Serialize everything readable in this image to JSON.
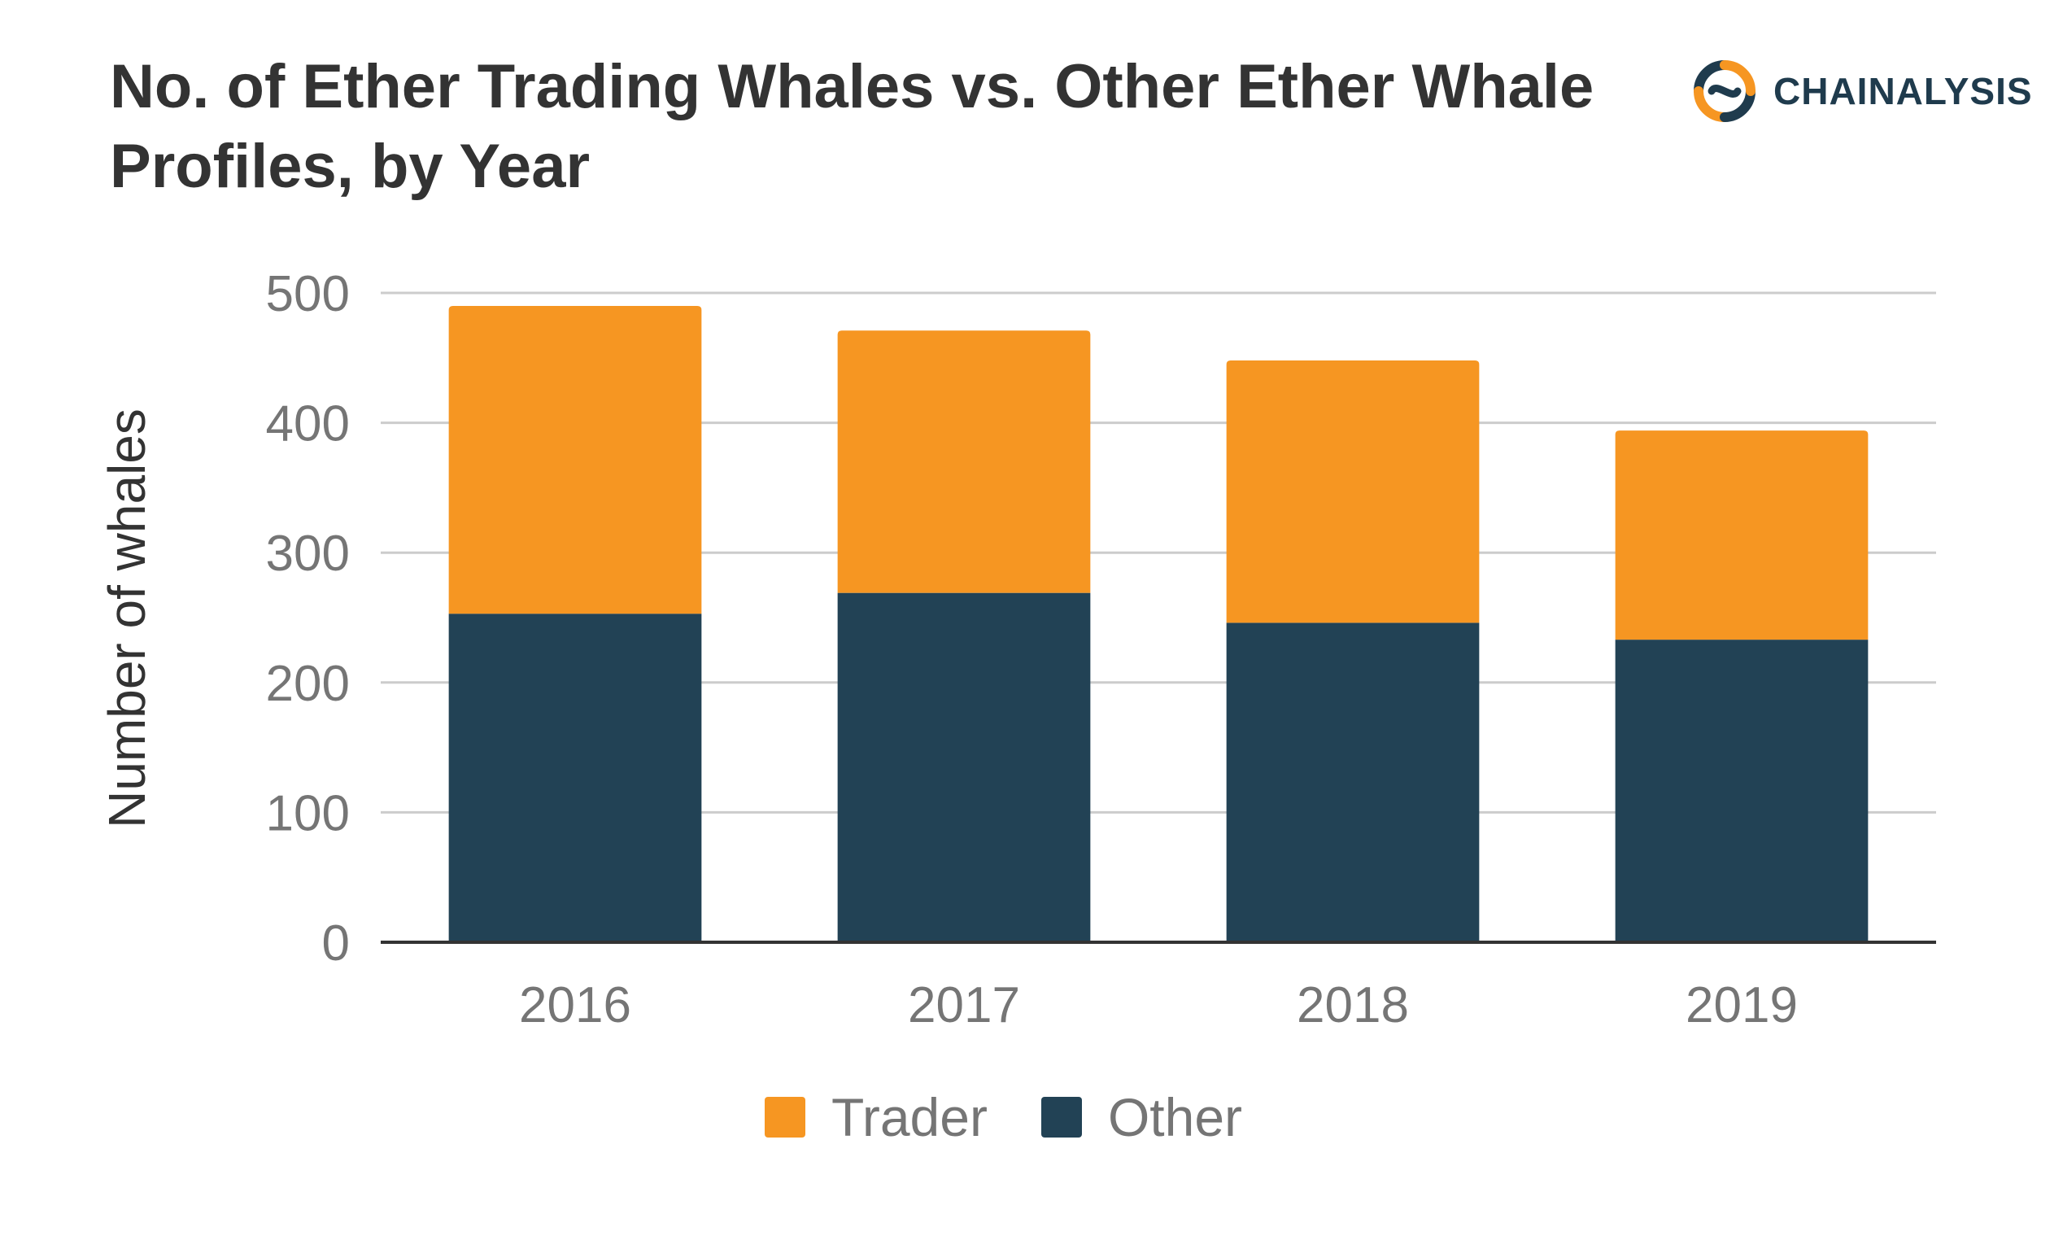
{
  "chart_data": {
    "type": "bar",
    "stacked": true,
    "title": "No. of Ether Trading Whales vs. Other Ether Whale Profiles, by Year",
    "xlabel": "",
    "ylabel": "Number of whales",
    "categories": [
      "2016",
      "2017",
      "2018",
      "2019"
    ],
    "yticks": [
      "0",
      "100",
      "200",
      "300",
      "400",
      "500"
    ],
    "ylim": [
      0,
      500
    ],
    "grid": true,
    "legend_position": "bottom",
    "series": [
      {
        "name": "Other",
        "color": "#224255",
        "values": [
          253,
          269,
          246,
          233
        ]
      },
      {
        "name": "Trader",
        "color": "#f69622",
        "values": [
          237,
          202,
          202,
          161
        ]
      }
    ],
    "legend": [
      {
        "name": "Trader",
        "color": "#f69622"
      },
      {
        "name": "Other",
        "color": "#224255"
      }
    ]
  },
  "brand": {
    "name": "CHAINALYSIS",
    "icon": "chainalysis-logo-icon",
    "colors": {
      "navy": "#1f3b4d",
      "orange": "#f69622"
    }
  }
}
